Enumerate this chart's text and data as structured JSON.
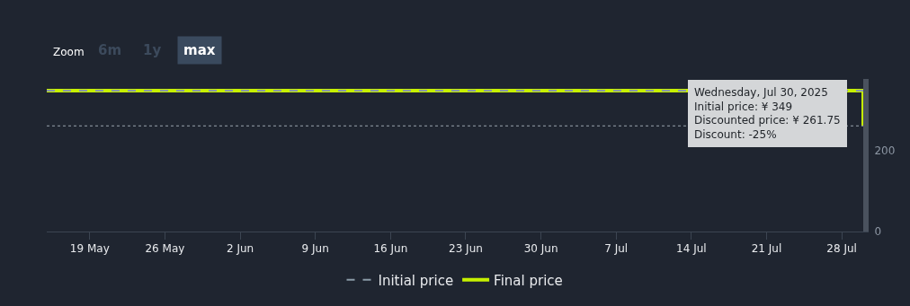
{
  "chart_data": {
    "type": "step",
    "x": [
      "2025-05-15",
      "2025-07-30"
    ],
    "series": [
      {
        "name": "Initial price",
        "color": "#8a9aa6",
        "line_style": "dashed",
        "values": [
          349,
          349
        ]
      },
      {
        "name": "Final price",
        "color": "#c6f000",
        "line_style": "solid",
        "values": [
          349,
          261.75
        ]
      }
    ],
    "xlim": [
      "2025-05-15",
      "2025-07-30"
    ],
    "xticks": [
      {
        "value": "2025-05-19",
        "label": "19 May"
      },
      {
        "value": "2025-05-26",
        "label": "26 May"
      },
      {
        "value": "2025-06-02",
        "label": "2 Jun"
      },
      {
        "value": "2025-06-09",
        "label": "9 Jun"
      },
      {
        "value": "2025-06-16",
        "label": "16 Jun"
      },
      {
        "value": "2025-06-23",
        "label": "23 Jun"
      },
      {
        "value": "2025-06-30",
        "label": "30 Jun"
      },
      {
        "value": "2025-07-07",
        "label": "7 Jul"
      },
      {
        "value": "2025-07-14",
        "label": "14 Jul"
      },
      {
        "value": "2025-07-21",
        "label": "21 Jul"
      },
      {
        "value": "2025-07-28",
        "label": "28 Jul"
      }
    ],
    "ylim": [
      0,
      378
    ],
    "yticks": [
      0,
      200
    ],
    "ref_lines": [
      {
        "axis": "y",
        "value": 261.75,
        "color": "#9aa3ad",
        "line_style": "dotted"
      }
    ],
    "annotations": [
      "Zoom",
      "6m",
      "1y",
      "max",
      {
        "text": "Wednesday, Jul 30, 2025\nInitial price: ¥ 349\nDiscounted price: ¥ 261.75\nDiscount: -25%",
        "x": "2025-07-30",
        "y": 349
      }
    ],
    "grid": false,
    "legend": "bottom",
    "marker": "none"
  }
}
